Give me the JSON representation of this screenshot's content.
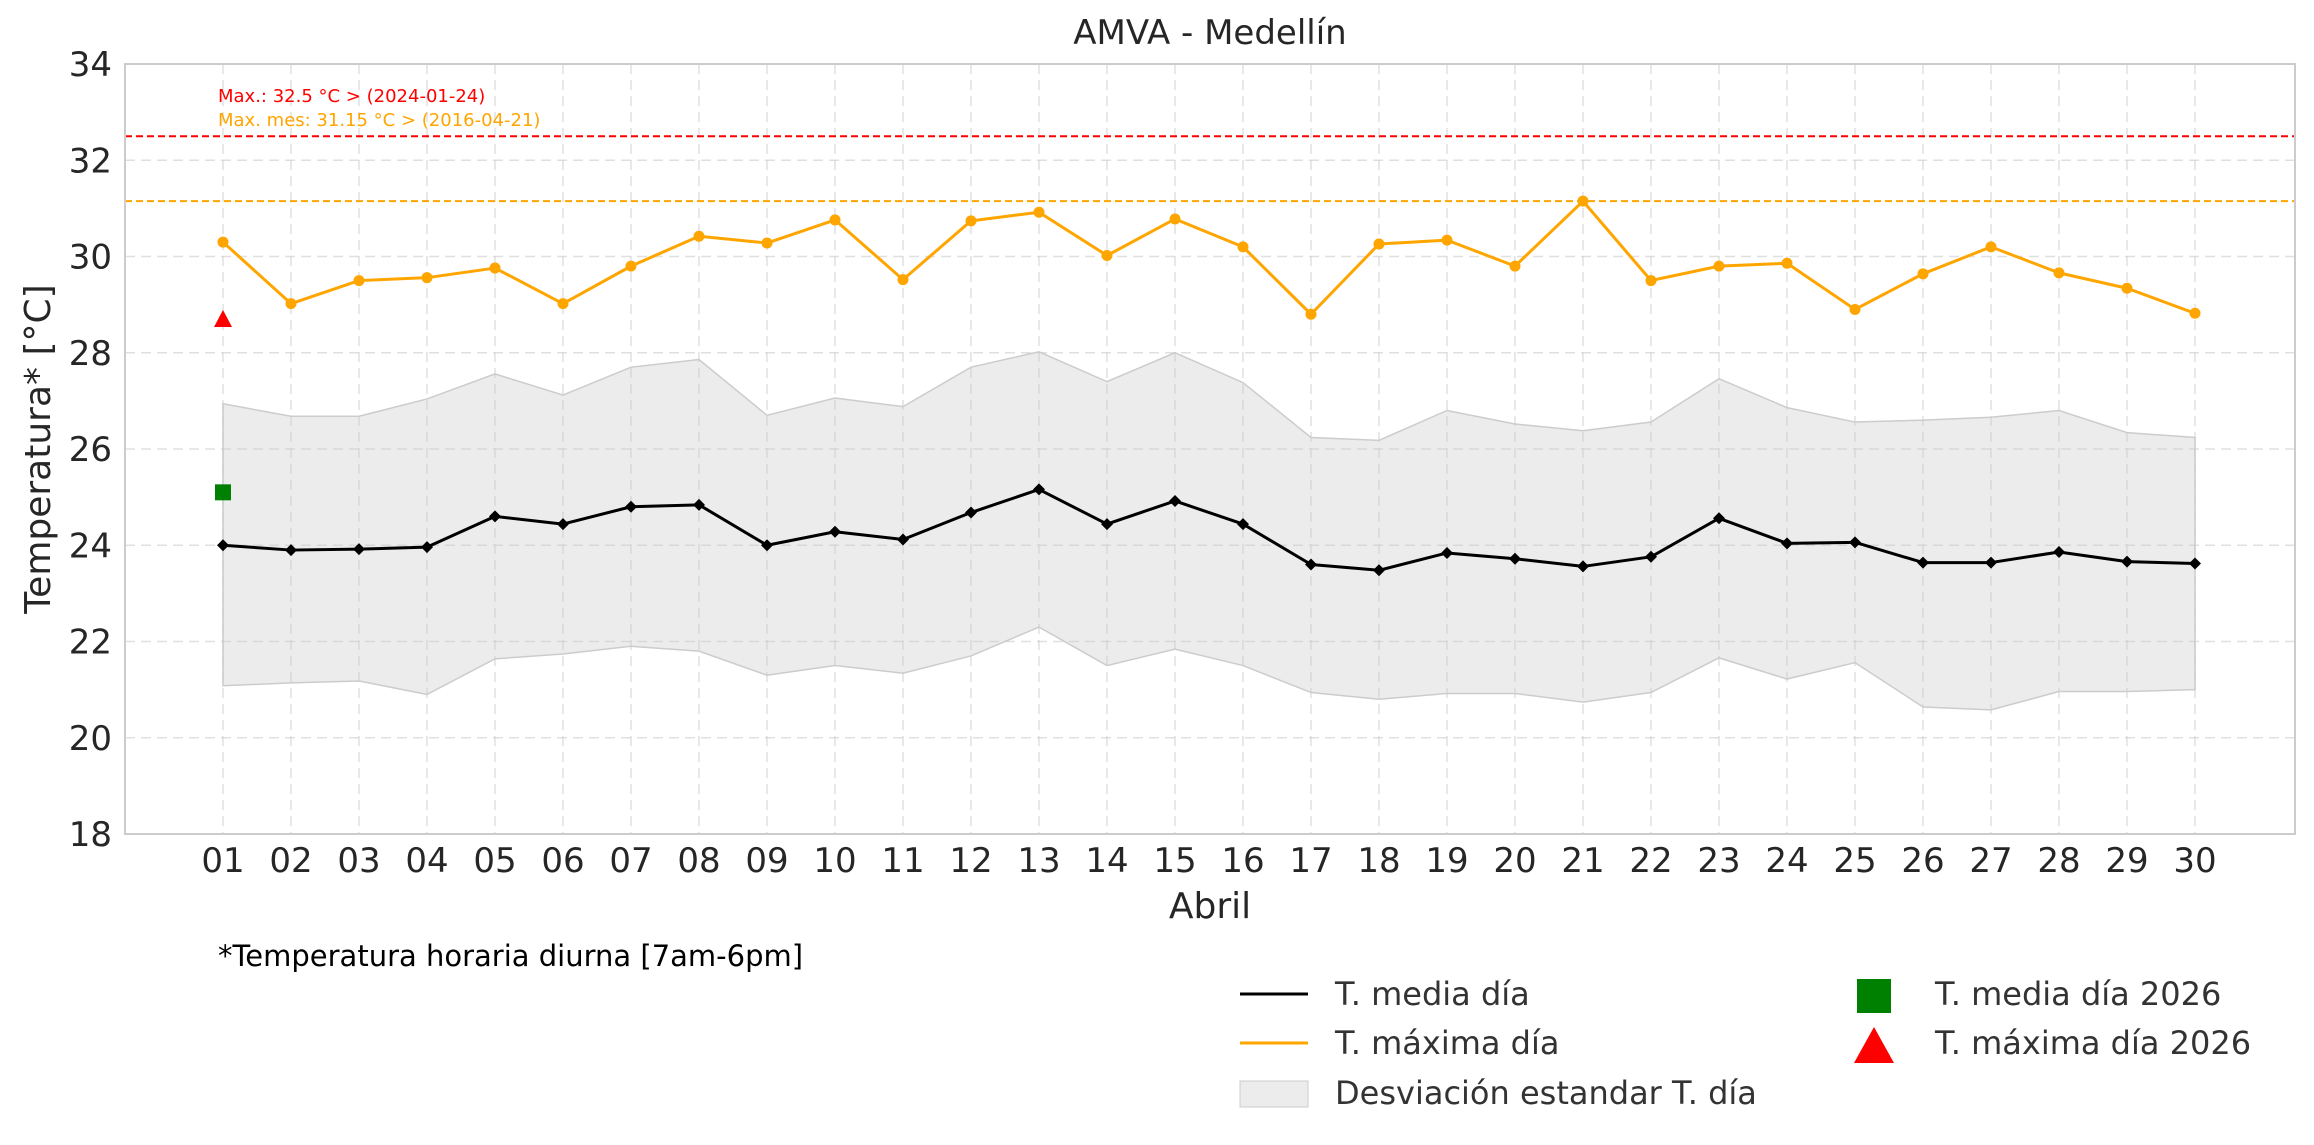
{
  "chart_data": {
    "type": "line",
    "title": "AMVA - Medellín",
    "xlabel": "Abril",
    "ylabel": "Temperatura* [°C]",
    "footnote": "*Temperatura horaria diurna [7am-6pm]",
    "ylim": [
      18,
      34
    ],
    "yticks": [
      18,
      20,
      22,
      24,
      26,
      28,
      30,
      32,
      34
    ],
    "grid": true,
    "legend_position": "bottom-right",
    "categories": [
      "01",
      "02",
      "03",
      "04",
      "05",
      "06",
      "07",
      "08",
      "09",
      "10",
      "11",
      "12",
      "13",
      "14",
      "15",
      "16",
      "17",
      "18",
      "19",
      "20",
      "21",
      "22",
      "23",
      "24",
      "25",
      "26",
      "27",
      "28",
      "29",
      "30"
    ],
    "series": [
      {
        "name": "T. media día",
        "color": "#000000",
        "values": [
          24.0,
          23.9,
          23.92,
          23.96,
          24.6,
          24.44,
          24.8,
          24.84,
          24.0,
          24.28,
          24.12,
          24.68,
          25.16,
          24.44,
          24.92,
          24.44,
          23.6,
          23.48,
          23.84,
          23.72,
          23.56,
          23.76,
          24.56,
          24.04,
          24.06,
          23.64,
          23.64,
          23.86,
          23.66,
          23.62
        ]
      },
      {
        "name": "T. máxima día",
        "color": "#ffa500",
        "values": [
          30.3,
          29.02,
          29.5,
          29.56,
          29.76,
          29.02,
          29.8,
          30.42,
          30.28,
          30.76,
          29.52,
          30.74,
          30.92,
          30.02,
          30.78,
          30.2,
          28.8,
          30.26,
          30.34,
          29.8,
          31.15,
          29.5,
          29.8,
          29.86,
          28.9,
          29.64,
          30.2,
          29.66,
          29.34,
          28.82
        ]
      }
    ],
    "std_band": {
      "name": "Desviación estandar T. día",
      "color": "#d9d9d9",
      "upper": [
        26.94,
        26.68,
        26.68,
        27.04,
        27.56,
        27.12,
        27.7,
        27.86,
        26.7,
        27.06,
        26.88,
        27.7,
        28.02,
        27.4,
        28.0,
        27.38,
        26.24,
        26.18,
        26.8,
        26.52,
        26.38,
        26.56,
        27.46,
        26.86,
        26.56,
        26.6,
        26.66,
        26.8,
        26.34,
        26.24
      ],
      "lower": [
        21.08,
        21.14,
        21.18,
        20.9,
        21.64,
        21.74,
        21.9,
        21.8,
        21.3,
        21.5,
        21.34,
        21.7,
        22.3,
        21.5,
        21.84,
        21.5,
        20.94,
        20.8,
        20.92,
        20.92,
        20.74,
        20.94,
        21.66,
        21.22,
        21.56,
        20.64,
        20.58,
        20.96,
        20.96,
        21.0
      ]
    },
    "current_year": {
      "media": {
        "name": "T. media día 2026",
        "day": "01",
        "value": 25.1,
        "color": "#008000"
      },
      "maxima": {
        "name": "T. máxima día 2026",
        "day": "01",
        "value": 28.68,
        "color": "#ff0000"
      }
    },
    "reference_lines": [
      {
        "value": 32.5,
        "color": "#ff0000",
        "label": "Max.: 32.5 °C  >  (2024-01-24)"
      },
      {
        "value": 31.15,
        "color": "#ffa500",
        "label": "Max. mes: 31.15 °C  >  (2016-04-21)"
      }
    ]
  }
}
